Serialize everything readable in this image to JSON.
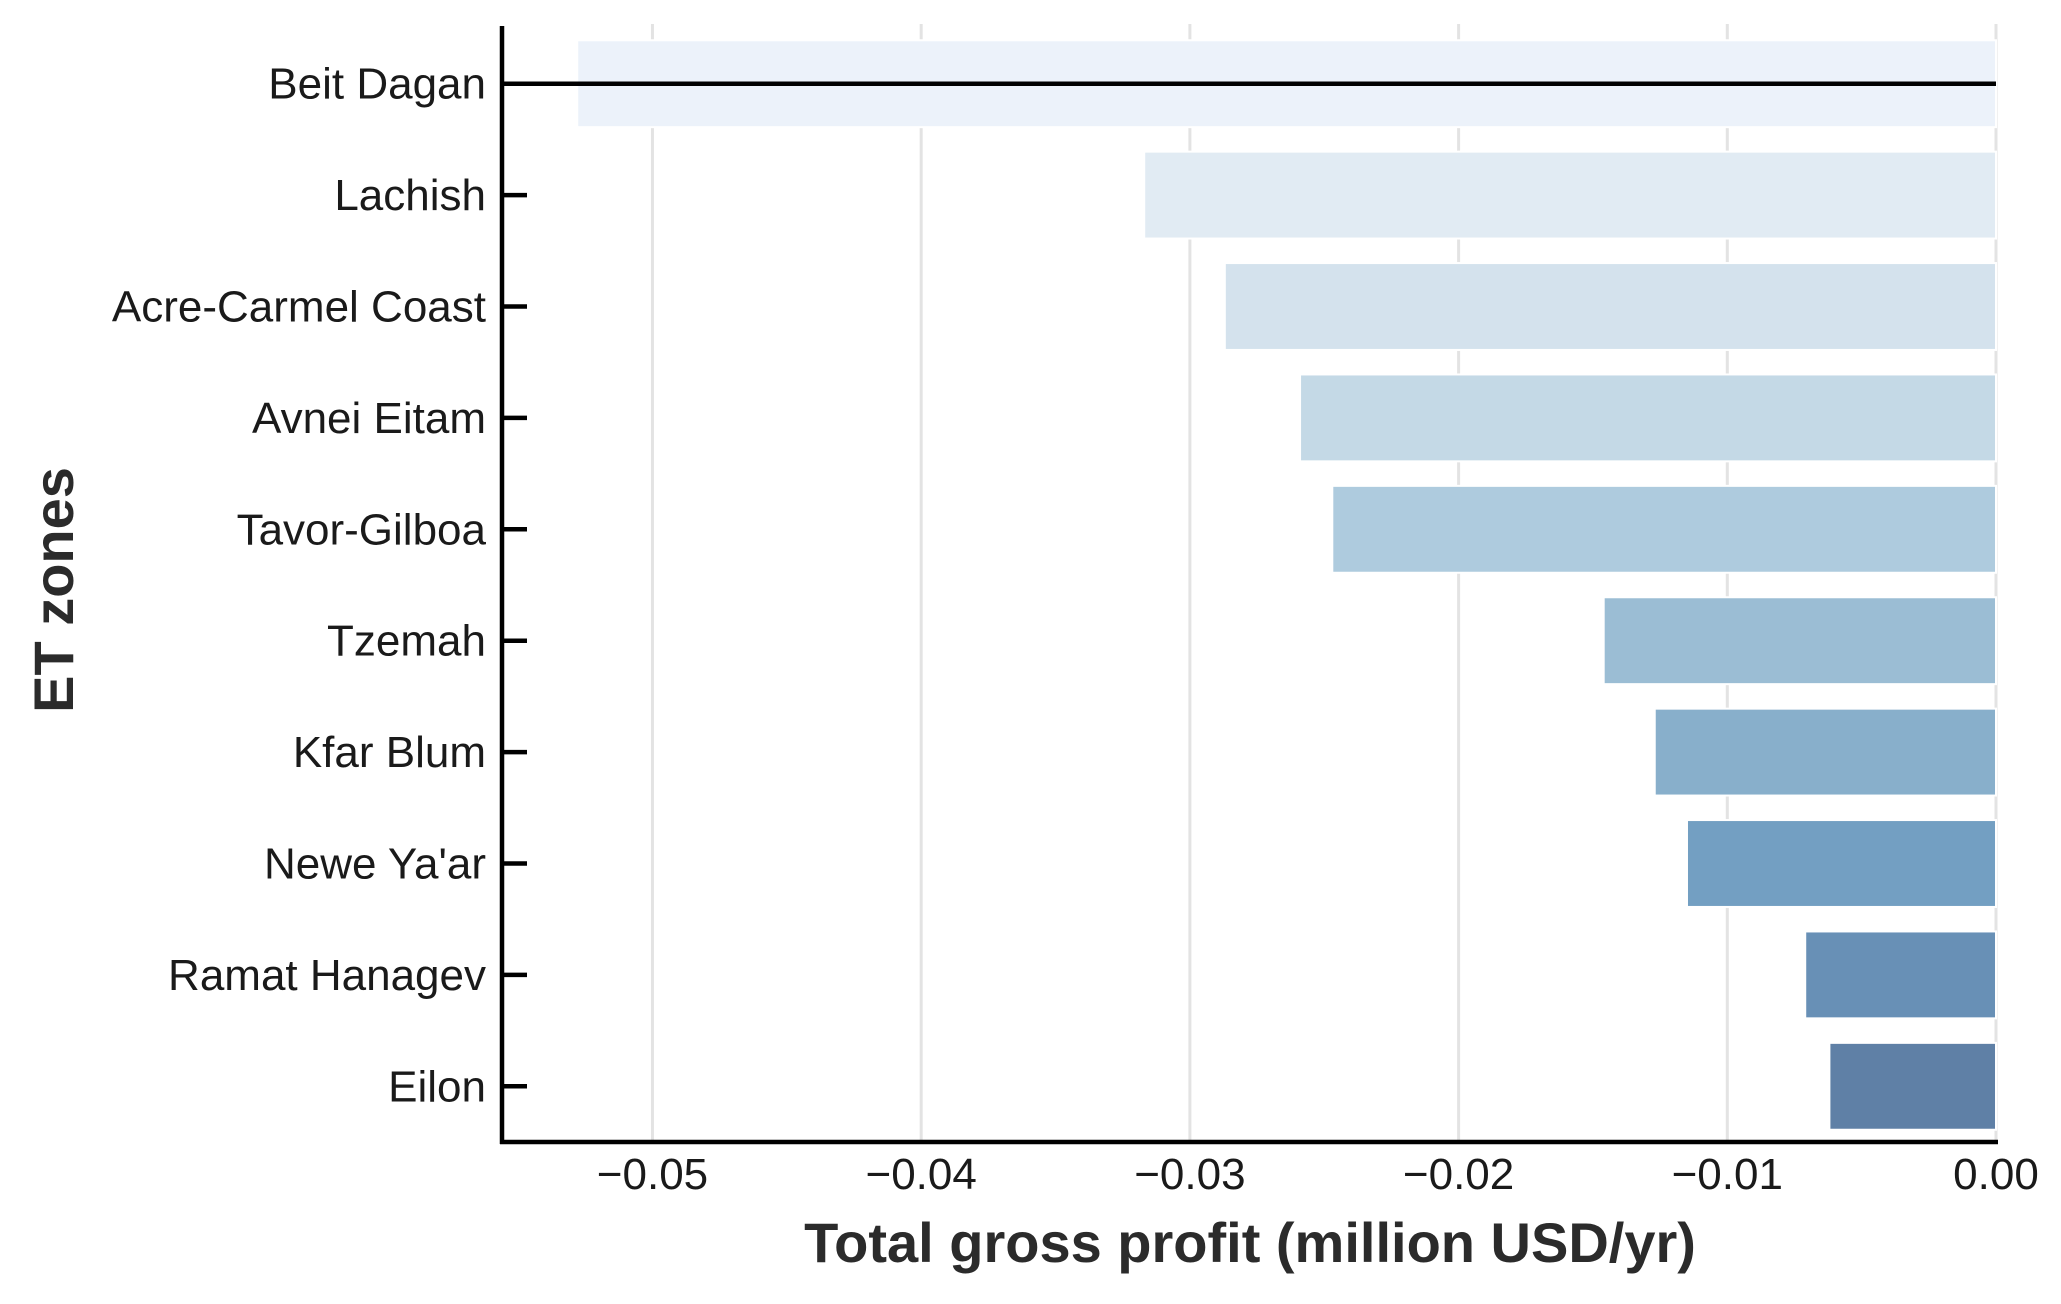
{
  "chart_data": {
    "type": "bar",
    "orientation": "horizontal",
    "xlabel": "Total gross profit (million USD/yr)",
    "ylabel": "ET zones",
    "xlim": [
      -0.0556,
      0.0
    ],
    "xticks": [
      -0.05,
      -0.04,
      -0.03,
      -0.02,
      -0.01,
      0.0
    ],
    "xtick_labels": [
      "−0.05",
      "−0.04",
      "−0.03",
      "−0.02",
      "−0.01",
      "0.00"
    ],
    "grid": "vertical",
    "categories": [
      "Beit Dagan",
      "Lachish",
      "Acre-Carmel Coast",
      "Avnei Eitam",
      "Tavor-Gilboa",
      "Tzemah",
      "Kfar Blum",
      "Newe Ya'ar",
      "Ramat Hanagev",
      "Eilon"
    ],
    "values": [
      -0.0528,
      -0.0317,
      -0.0287,
      -0.0259,
      -0.0247,
      -0.0146,
      -0.0127,
      -0.0115,
      -0.0071,
      -0.0062
    ],
    "colors": [
      "#ecf2fa",
      "#e1ebf3",
      "#d4e2ed",
      "#c4d9e6",
      "#aecbde",
      "#9bbdd4",
      "#88afcb",
      "#739fc2",
      "#6890b6",
      "#5f80a6"
    ],
    "reference_line_category": "Beit Dagan",
    "reference_line_color": "#000000",
    "grid_color": "#e3e3e3",
    "axis_color": "#000000"
  }
}
